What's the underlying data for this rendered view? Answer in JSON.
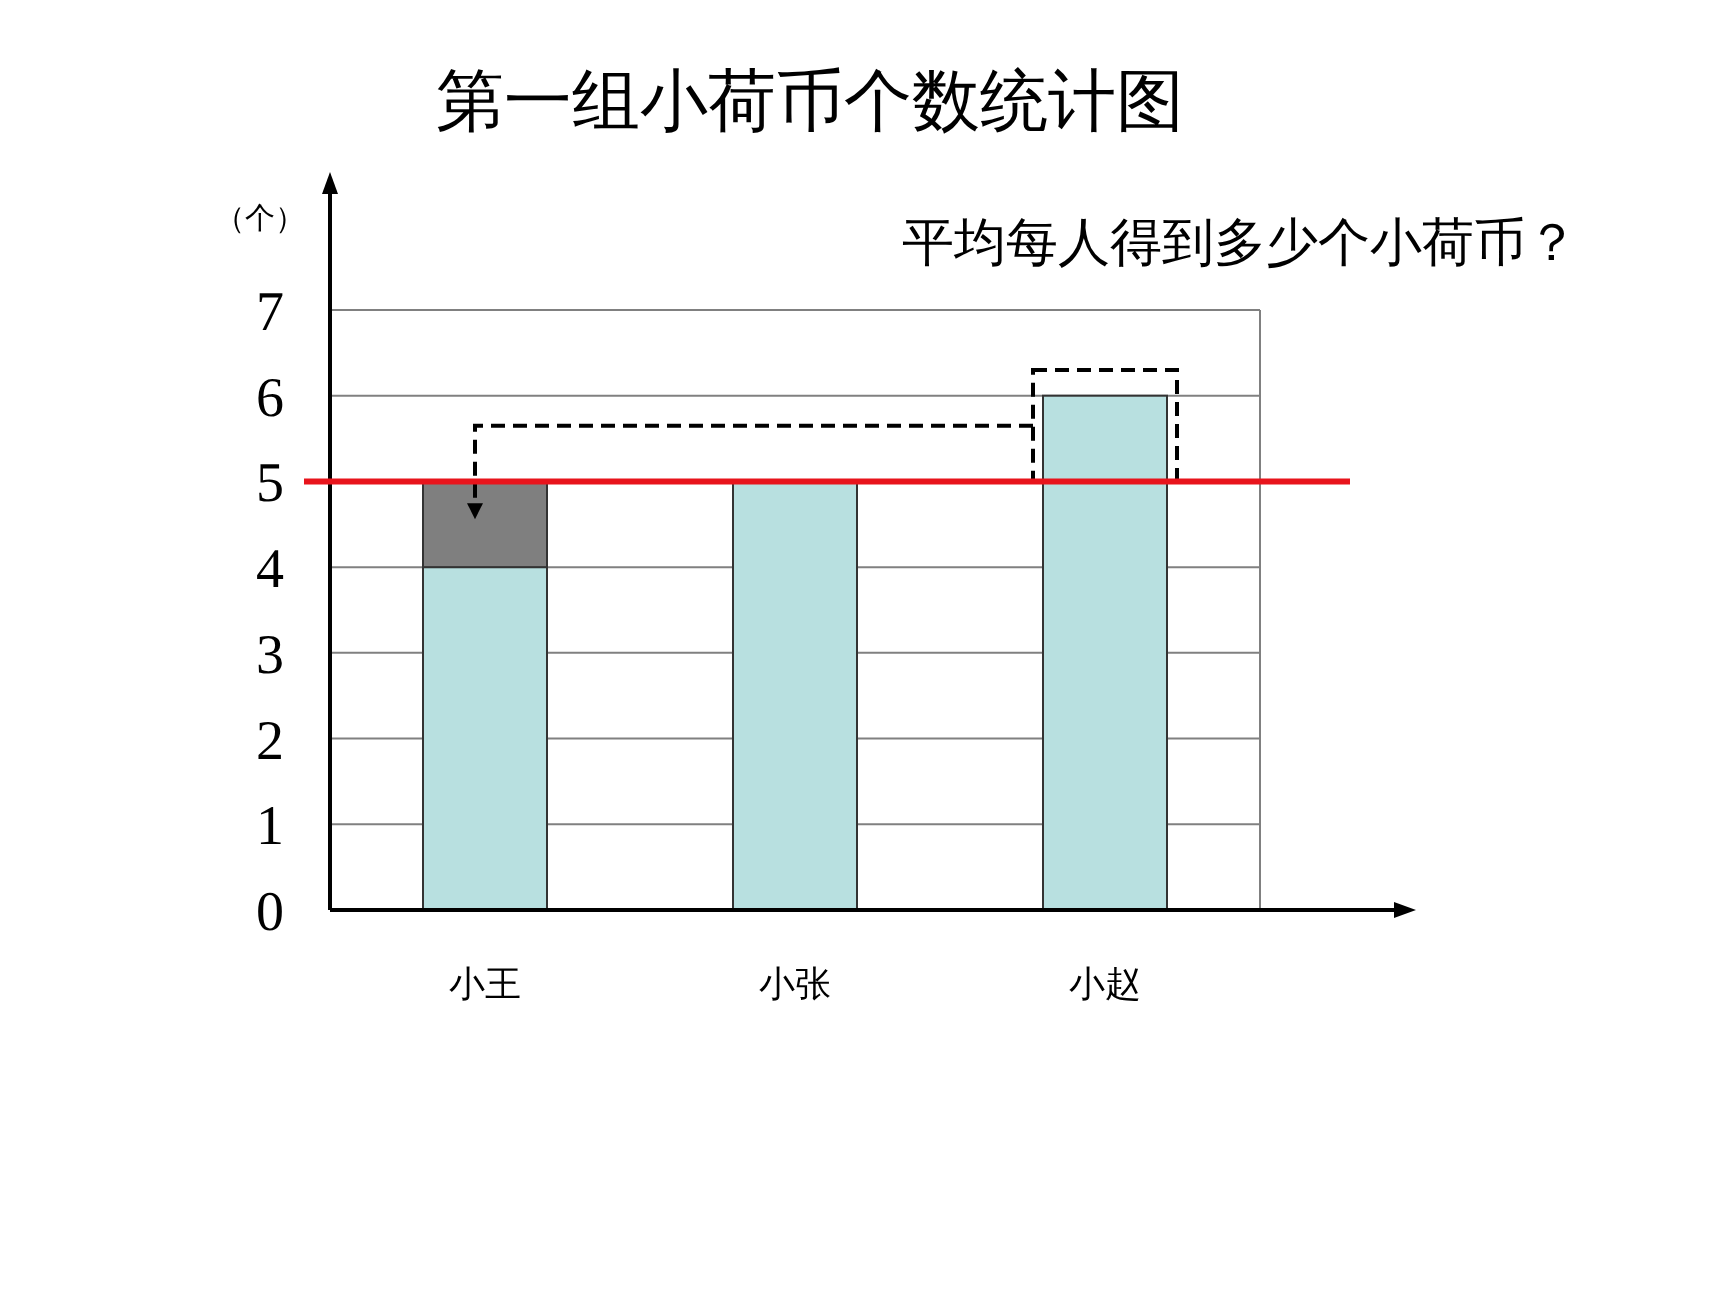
{
  "chart_data": {
    "type": "bar",
    "title": "第一组小荷币个数统计图",
    "ylabel": "（个）",
    "categories": [
      "小王",
      "小张",
      "小赵"
    ],
    "stacked": true,
    "series": [
      {
        "color": "#b8e0e0",
        "values": [
          4,
          5,
          6
        ]
      },
      {
        "color": "#7f7f7f",
        "values": [
          1,
          null,
          null
        ]
      }
    ],
    "ylim": [
      0,
      7
    ],
    "yticks": [
      0,
      1,
      2,
      3,
      4,
      5,
      6,
      7
    ],
    "grid": "y",
    "ref_lines": [
      {
        "axis": "y",
        "value": 5,
        "color": "#e8141c"
      }
    ],
    "annotations": [
      "平均每人得到多少个小荷币？"
    ]
  }
}
